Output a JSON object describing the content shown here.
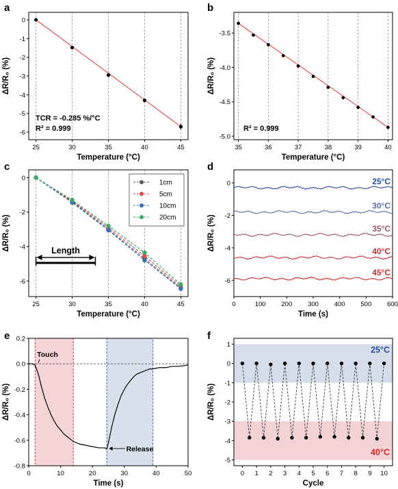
{
  "colors": {
    "axis": "#000000",
    "fit_line": "#e03c3c",
    "grid": "#888888",
    "c_1cm": "#555555",
    "c_5cm": "#e04848",
    "c_10cm": "#3a6fb5",
    "c_20cm": "#3aaa6a",
    "t25": "#2b4f9e",
    "t30": "#5e6fa6",
    "t35": "#9a5570",
    "t40": "#c0303a",
    "t45": "#cc2a2a",
    "touch_fill": "#f4d4d6",
    "touch_border": "#d03a4a",
    "release_fill": "#d8e0ec",
    "release_border": "#3a5fa8",
    "band_blue": "#d5dcea",
    "band_red": "#f2d2d4"
  },
  "chart_data": [
    {
      "panel": "a",
      "type": "scatter",
      "xlabel": "Temperature (°C)",
      "ylabel": "ΔR/R₀ (%)",
      "xlim": [
        24,
        46
      ],
      "ylim": [
        -6.4,
        0.4
      ],
      "xticks": [
        25,
        30,
        35,
        40,
        45
      ],
      "yticks": [
        0,
        -1,
        -2,
        -3,
        -4,
        -5,
        -6
      ],
      "xgrid": [
        25,
        30,
        35,
        40,
        45
      ],
      "x": [
        25,
        30,
        35,
        40,
        45
      ],
      "y": [
        0,
        -1.48,
        -2.95,
        -4.3,
        -5.7
      ],
      "error": [
        0.05,
        0.05,
        0.1,
        0.1,
        0.15
      ],
      "fit": {
        "x": [
          25,
          45
        ],
        "y": [
          0,
          -5.7
        ]
      },
      "annotation_1": "TCR = -0.285 %/°C",
      "annotation_2": "R² = 0.999"
    },
    {
      "panel": "b",
      "type": "scatter",
      "xlabel": "Temperature (°C)",
      "ylabel": "ΔR/R₀ (%)",
      "xlim": [
        34.85,
        40.15
      ],
      "ylim": [
        -5.05,
        -3.2
      ],
      "xticks": [
        35,
        36,
        37,
        38,
        39,
        40
      ],
      "yticks": [
        -3.5,
        -4.0,
        -4.5,
        -5.0
      ],
      "xgrid": [
        35,
        36,
        37,
        38,
        39,
        40
      ],
      "x": [
        35,
        35.5,
        36,
        36.5,
        37,
        37.5,
        38,
        38.5,
        39,
        39.5,
        40
      ],
      "y": [
        -3.36,
        -3.53,
        -3.67,
        -3.83,
        -3.98,
        -4.13,
        -4.29,
        -4.44,
        -4.58,
        -4.72,
        -4.87
      ],
      "fit": {
        "x": [
          35,
          40
        ],
        "y": [
          -3.36,
          -4.87
        ]
      },
      "annotation_1": "R² = 0.999"
    },
    {
      "panel": "c",
      "type": "line",
      "xlabel": "Temperature (°C)",
      "ylabel": "ΔR/R₀ (%)",
      "xlim": [
        24,
        46
      ],
      "ylim": [
        -6.9,
        0.45
      ],
      "xticks": [
        25,
        30,
        35,
        40,
        45
      ],
      "yticks": [
        0,
        -2,
        -4,
        -6
      ],
      "xgrid": [
        25,
        30,
        35,
        40,
        45
      ],
      "x": [
        25,
        30,
        35,
        40,
        45
      ],
      "series": [
        {
          "name": "1cm",
          "values": [
            0,
            -1.4,
            -3.0,
            -4.7,
            -6.4
          ]
        },
        {
          "name": "5cm",
          "values": [
            0,
            -1.35,
            -2.9,
            -4.55,
            -6.3
          ]
        },
        {
          "name": "10cm",
          "values": [
            0,
            -1.45,
            -3.05,
            -4.8,
            -6.45
          ]
        },
        {
          "name": "20cm",
          "values": [
            0,
            -1.3,
            -2.8,
            -4.35,
            -6.2
          ]
        }
      ],
      "inset_label": "Length",
      "legend": "top-right"
    },
    {
      "panel": "d",
      "type": "line",
      "xlabel": "Time (s)",
      "ylabel": "ΔR/R₀ (%)",
      "xlim": [
        0,
        600
      ],
      "ylim": [
        -7,
        0.8
      ],
      "xticks": [
        0,
        100,
        200,
        300,
        400,
        500,
        600
      ],
      "yticks": [
        0,
        -2,
        -4,
        -6
      ],
      "series": [
        {
          "name": "25°C",
          "level": -0.3
        },
        {
          "name": "30°C",
          "level": -1.8
        },
        {
          "name": "35°C",
          "level": -3.2
        },
        {
          "name": "40°C",
          "level": -4.6
        },
        {
          "name": "45°C",
          "level": -5.9
        }
      ]
    },
    {
      "panel": "e",
      "type": "line",
      "xlabel": "Time (s)",
      "ylabel": "ΔR/R₀ (%)",
      "xlim": [
        0,
        50
      ],
      "ylim": [
        -0.8,
        0.2
      ],
      "xticks": [
        0,
        10,
        20,
        30,
        40,
        50
      ],
      "yticks": [
        0.2,
        0.0,
        -0.2,
        -0.4,
        -0.6,
        -0.8
      ],
      "touch_window": [
        2,
        14
      ],
      "release_window": [
        24.5,
        39
      ],
      "x": [
        0,
        1,
        2,
        3,
        4,
        5,
        6,
        7,
        8,
        9,
        10,
        11,
        12,
        13,
        14,
        16,
        18,
        20,
        22,
        24,
        24.5,
        25,
        26,
        27,
        28,
        29,
        30,
        31,
        32,
        33,
        34,
        35,
        36,
        37,
        38,
        39,
        41,
        43,
        45,
        47,
        50
      ],
      "y": [
        0.0,
        0.0,
        -0.01,
        -0.08,
        -0.18,
        -0.27,
        -0.34,
        -0.4,
        -0.45,
        -0.49,
        -0.52,
        -0.55,
        -0.57,
        -0.59,
        -0.61,
        -0.63,
        -0.64,
        -0.65,
        -0.66,
        -0.66,
        -0.67,
        -0.62,
        -0.5,
        -0.4,
        -0.32,
        -0.25,
        -0.2,
        -0.16,
        -0.13,
        -0.1,
        -0.08,
        -0.07,
        -0.06,
        -0.05,
        -0.04,
        -0.04,
        -0.03,
        -0.03,
        -0.02,
        -0.02,
        -0.01
      ],
      "annotation_touch": "Touch",
      "annotation_release": "Release"
    },
    {
      "panel": "f",
      "type": "line",
      "xlabel": "Cycle",
      "ylabel": "ΔR/R₀ (%)",
      "xlim": [
        -0.6,
        10.6
      ],
      "ylim": [
        -5.3,
        1.3
      ],
      "xticks": [
        0,
        1,
        2,
        3,
        4,
        5,
        6,
        7,
        8,
        9,
        10
      ],
      "yticks": [
        1,
        0,
        -1,
        -2,
        -3,
        -4,
        -5
      ],
      "x": [
        0,
        0.5,
        1,
        1.5,
        2,
        2.5,
        3,
        3.5,
        4,
        4.5,
        5,
        5.5,
        6,
        6.5,
        7,
        7.5,
        8,
        8.5,
        9,
        9.5,
        10
      ],
      "y": [
        0,
        -3.85,
        0,
        -3.85,
        -0.05,
        -3.9,
        0,
        -3.85,
        0,
        -3.85,
        0,
        -3.8,
        0,
        -3.8,
        0,
        -3.85,
        0,
        -3.85,
        0,
        -3.9,
        0
      ],
      "band_high": [
        -1,
        1
      ],
      "band_low": [
        -5,
        -3
      ],
      "label_high": "25°C",
      "label_low": "40°C"
    }
  ],
  "panel_labels": [
    "a",
    "b",
    "c",
    "d",
    "e",
    "f"
  ]
}
